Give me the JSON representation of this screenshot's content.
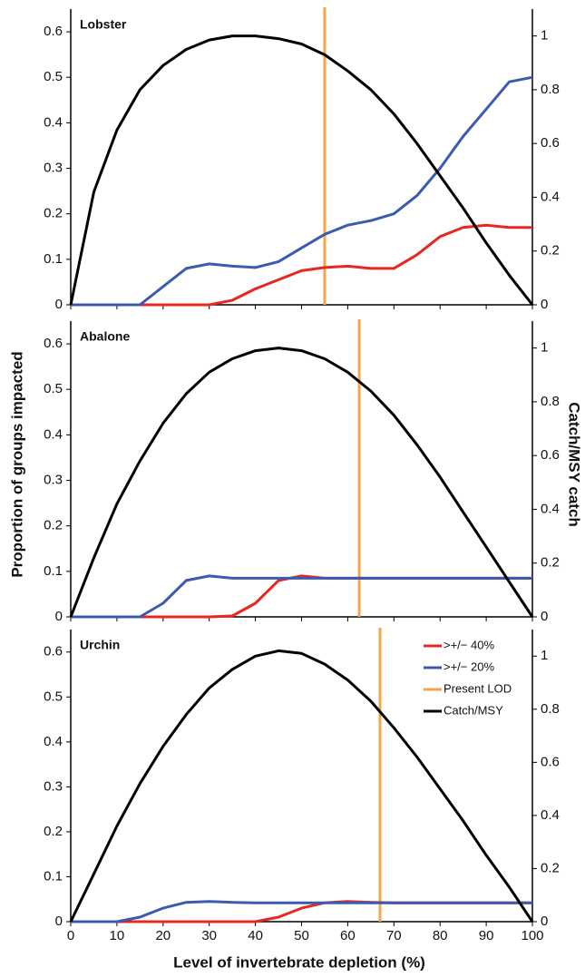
{
  "shared": {
    "x_label": "Level of invertebrate depletion (%)",
    "y_label": "Proportion of groups impacted",
    "y2_label": "Catch/MSY catch"
  },
  "chart_data": [
    {
      "type": "line",
      "title": "Lobster",
      "x": [
        0,
        5,
        10,
        15,
        20,
        25,
        30,
        35,
        40,
        45,
        50,
        55,
        60,
        65,
        70,
        75,
        80,
        85,
        90,
        95,
        100
      ],
      "series": [
        {
          "color": "#e8281e",
          "values": [
            0,
            0,
            0,
            0,
            0,
            0,
            0,
            0.01,
            0.035,
            0.055,
            0.075,
            0.082,
            0.085,
            0.08,
            0.08,
            0.11,
            0.15,
            0.17,
            0.175,
            0.17,
            0.17
          ]
        },
        {
          "color": "#3a5bb0",
          "values": [
            0,
            0,
            0,
            0,
            0.04,
            0.08,
            0.09,
            0.085,
            0.082,
            0.095,
            0.125,
            0.155,
            0.175,
            0.185,
            0.2,
            0.24,
            0.3,
            0.37,
            0.43,
            0.49,
            0.5
          ]
        },
        {
          "color": "#000000",
          "axis": "y2",
          "values": [
            0,
            0.42,
            0.65,
            0.8,
            0.89,
            0.95,
            0.985,
            1.0,
            1.0,
            0.99,
            0.97,
            0.93,
            0.87,
            0.8,
            0.71,
            0.6,
            0.48,
            0.36,
            0.23,
            0.11,
            0
          ]
        }
      ],
      "vlines": [
        {
          "x": 55,
          "color": "#f5a54a"
        }
      ],
      "xlim": [
        0,
        100
      ],
      "xticks": [
        0,
        10,
        20,
        30,
        40,
        50,
        60,
        70,
        80,
        90,
        100
      ],
      "show_xtick_labels": false,
      "ylim": [
        0,
        0.65
      ],
      "yticks": [
        0,
        0.1,
        0.2,
        0.3,
        0.4,
        0.5,
        0.6
      ],
      "y2lim": [
        0,
        1.1
      ],
      "y2ticks": [
        0,
        0.2,
        0.4,
        0.6,
        0.8,
        1
      ]
    },
    {
      "type": "line",
      "title": "Abalone",
      "x": [
        0,
        5,
        10,
        15,
        20,
        25,
        30,
        35,
        40,
        45,
        50,
        55,
        60,
        65,
        70,
        75,
        80,
        85,
        90,
        95,
        100
      ],
      "series": [
        {
          "color": "#e8281e",
          "values": [
            0,
            0,
            0,
            0,
            0,
            0,
            0,
            0.002,
            0.03,
            0.08,
            0.09,
            0.085,
            0.085,
            0.085,
            0.085,
            0.085,
            0.085,
            0.085,
            0.085,
            0.085,
            0.085
          ]
        },
        {
          "color": "#3a5bb0",
          "values": [
            0,
            0,
            0,
            0,
            0.03,
            0.08,
            0.09,
            0.085,
            0.085,
            0.085,
            0.085,
            0.085,
            0.085,
            0.085,
            0.085,
            0.085,
            0.085,
            0.085,
            0.085,
            0.085,
            0.085
          ]
        },
        {
          "color": "#000000",
          "axis": "y2",
          "values": [
            0,
            0.22,
            0.42,
            0.58,
            0.72,
            0.83,
            0.91,
            0.96,
            0.99,
            1.0,
            0.99,
            0.96,
            0.91,
            0.84,
            0.75,
            0.64,
            0.52,
            0.39,
            0.26,
            0.13,
            0
          ]
        }
      ],
      "vlines": [
        {
          "x": 62.5,
          "color": "#f5a54a"
        }
      ],
      "xlim": [
        0,
        100
      ],
      "xticks": [
        0,
        10,
        20,
        30,
        40,
        50,
        60,
        70,
        80,
        90,
        100
      ],
      "show_xtick_labels": false,
      "ylim": [
        0,
        0.65
      ],
      "yticks": [
        0,
        0.1,
        0.2,
        0.3,
        0.4,
        0.5,
        0.6
      ],
      "y2lim": [
        0,
        1.1
      ],
      "y2ticks": [
        0,
        0.2,
        0.4,
        0.6,
        0.8,
        1
      ]
    },
    {
      "type": "line",
      "title": "Urchin",
      "x": [
        0,
        5,
        10,
        15,
        20,
        25,
        30,
        35,
        40,
        45,
        50,
        55,
        60,
        65,
        70,
        75,
        80,
        85,
        90,
        95,
        100
      ],
      "series": [
        {
          "name": ">+/− 40%",
          "color": "#e8281e",
          "values": [
            0,
            0,
            0,
            0,
            0,
            0,
            0,
            0,
            0,
            0.01,
            0.03,
            0.042,
            0.045,
            0.043,
            0.042,
            0.042,
            0.042,
            0.042,
            0.042,
            0.042,
            0.042
          ]
        },
        {
          "name": ">+/− 20%",
          "color": "#3a5bb0",
          "values": [
            0,
            0,
            0,
            0.01,
            0.03,
            0.043,
            0.045,
            0.043,
            0.042,
            0.042,
            0.042,
            0.042,
            0.042,
            0.042,
            0.042,
            0.042,
            0.042,
            0.042,
            0.042,
            0.042,
            0.042
          ]
        },
        {
          "name": "Catch/MSY",
          "color": "#000000",
          "axis": "y2",
          "values": [
            0,
            0.18,
            0.36,
            0.52,
            0.66,
            0.78,
            0.88,
            0.95,
            1.0,
            1.02,
            1.01,
            0.97,
            0.91,
            0.83,
            0.73,
            0.62,
            0.5,
            0.38,
            0.25,
            0.13,
            0
          ]
        }
      ],
      "vlines": [
        {
          "name": "Present LOD",
          "x": 67,
          "color": "#f5a54a"
        }
      ],
      "legend": "upper right",
      "xlim": [
        0,
        100
      ],
      "xticks": [
        0,
        10,
        20,
        30,
        40,
        50,
        60,
        70,
        80,
        90,
        100
      ],
      "show_xtick_labels": true,
      "ylim": [
        0,
        0.65
      ],
      "yticks": [
        0,
        0.1,
        0.2,
        0.3,
        0.4,
        0.5,
        0.6
      ],
      "y2lim": [
        0,
        1.1
      ],
      "y2ticks": [
        0,
        0.2,
        0.4,
        0.6,
        0.8,
        1
      ]
    }
  ]
}
